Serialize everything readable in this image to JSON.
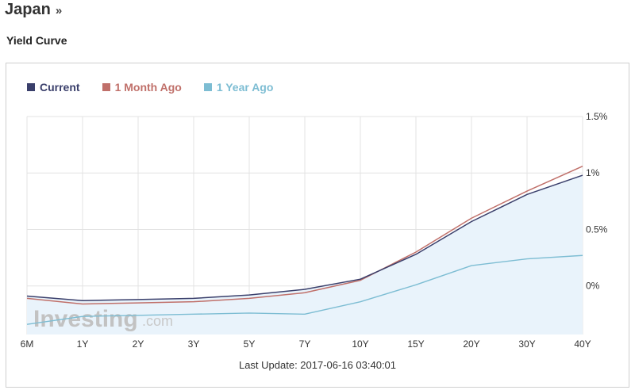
{
  "page": {
    "title": "Japan",
    "title_arrow": "»",
    "section_title": "Yield Curve",
    "last_update": "Last Update: 2017-06-16 03:40:01",
    "watermark": {
      "main": "Investing",
      "sub": ".com"
    }
  },
  "colors": {
    "current": "#3a3f6b",
    "month_ago": "#c0706a",
    "year_ago": "#7dbdd3",
    "area_fill": "#e9f3fb",
    "grid": "#e3e3e3"
  },
  "chart_data": {
    "type": "line",
    "categories": [
      "6M",
      "1Y",
      "2Y",
      "3Y",
      "5Y",
      "7Y",
      "10Y",
      "15Y",
      "20Y",
      "30Y",
      "40Y"
    ],
    "series": [
      {
        "name": "Current",
        "values": [
          -0.09,
          -0.13,
          -0.12,
          -0.11,
          -0.08,
          -0.03,
          0.06,
          0.28,
          0.57,
          0.81,
          0.98
        ]
      },
      {
        "name": "1 Month Ago",
        "values": [
          -0.11,
          -0.16,
          -0.15,
          -0.14,
          -0.11,
          -0.06,
          0.05,
          0.3,
          0.6,
          0.84,
          1.06
        ]
      },
      {
        "name": "1 Year Ago",
        "values": [
          -0.34,
          -0.27,
          -0.26,
          -0.25,
          -0.24,
          -0.25,
          -0.14,
          0.01,
          0.18,
          0.24,
          0.27
        ]
      }
    ],
    "y_ticks": [
      "1.5%",
      "1%",
      "0.5%",
      "0%"
    ],
    "y_tick_values": [
      1.5,
      1.0,
      0.5,
      0.0
    ],
    "ylim": [
      -0.43,
      1.5
    ],
    "grid": true,
    "legend_position": "top-left",
    "area_under": "Current"
  }
}
